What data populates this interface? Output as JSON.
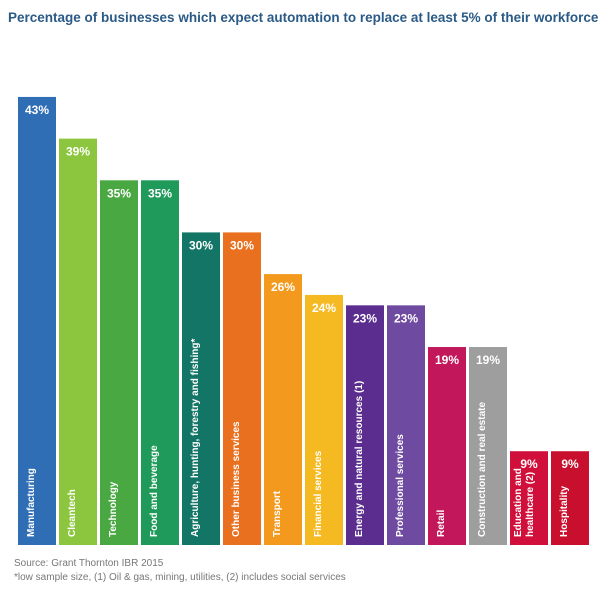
{
  "chart_data": {
    "type": "bar",
    "title": "Percentage of businesses which expect automation to replace at least 5% of their workforce",
    "categories": [
      "Manufacturing",
      "Cleantech",
      "Technology",
      "Food and beverage",
      "Agriculture, hunting, forestry and fishing*",
      "Other business services",
      "Transport",
      "Financial services",
      "Energy and natural resources (1)",
      "Professional services",
      "Retail",
      "Construction and real estate",
      "Education and healthcare (2)",
      "Hospitality"
    ],
    "values": [
      43,
      39,
      35,
      35,
      30,
      30,
      26,
      24,
      23,
      23,
      19,
      19,
      9,
      9
    ],
    "value_labels": [
      "43%",
      "39%",
      "35%",
      "35%",
      "30%",
      "30%",
      "26%",
      "24%",
      "23%",
      "23%",
      "19%",
      "19%",
      "9%",
      "9%"
    ],
    "colors": [
      "#2f6db5",
      "#8cc63f",
      "#4aa842",
      "#1f9a5a",
      "#137566",
      "#e8701e",
      "#f39a1e",
      "#f5b921",
      "#5b2d8e",
      "#6e4aa0",
      "#c2185b",
      "#9e9e9e",
      "#d0103a",
      "#c8102e"
    ],
    "source": "Source: Grant Thornton IBR 2015",
    "footnote": "*low sample size, (1) Oil & gas, mining, utilities, (2) includes social services"
  }
}
